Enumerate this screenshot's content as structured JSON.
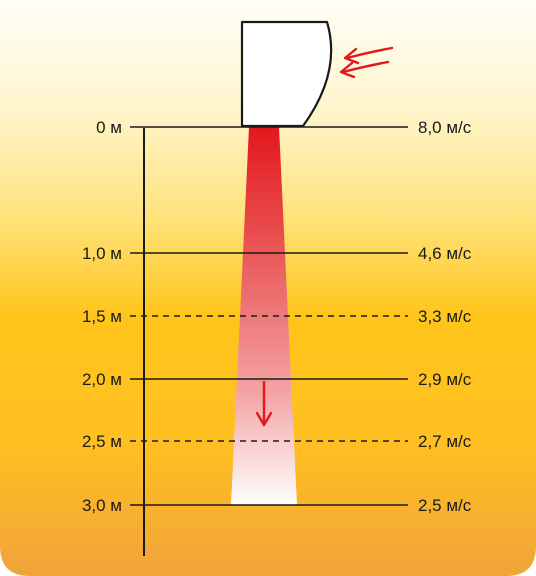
{
  "diagram": {
    "rows": [
      {
        "height": "0 м",
        "speed": "8,0 м/с",
        "line": "solid"
      },
      {
        "height": "1,0 м",
        "speed": "4,6 м/с",
        "line": "solid"
      },
      {
        "height": "1,5 м",
        "speed": "3,3 м/с",
        "line": "dashed"
      },
      {
        "height": "2,0 м",
        "speed": "2,9 м/с",
        "line": "solid"
      },
      {
        "height": "2,5 м",
        "speed": "2,7 м/с",
        "line": "dashed"
      },
      {
        "height": "3,0 м",
        "speed": "2,5 м/с",
        "line": "solid"
      }
    ],
    "colors": {
      "background_top": "#fffef7",
      "background_middle": "#ffc51a",
      "background_bottom": "#f0a33a",
      "airflow_top": "#e3171c",
      "airflow_bottom": "#ffffff",
      "arrow": "#e3171c",
      "line": "#1a1a1a"
    },
    "icons": [
      "air-intake-arrows-icon",
      "airflow-direction-arrow-icon"
    ]
  }
}
